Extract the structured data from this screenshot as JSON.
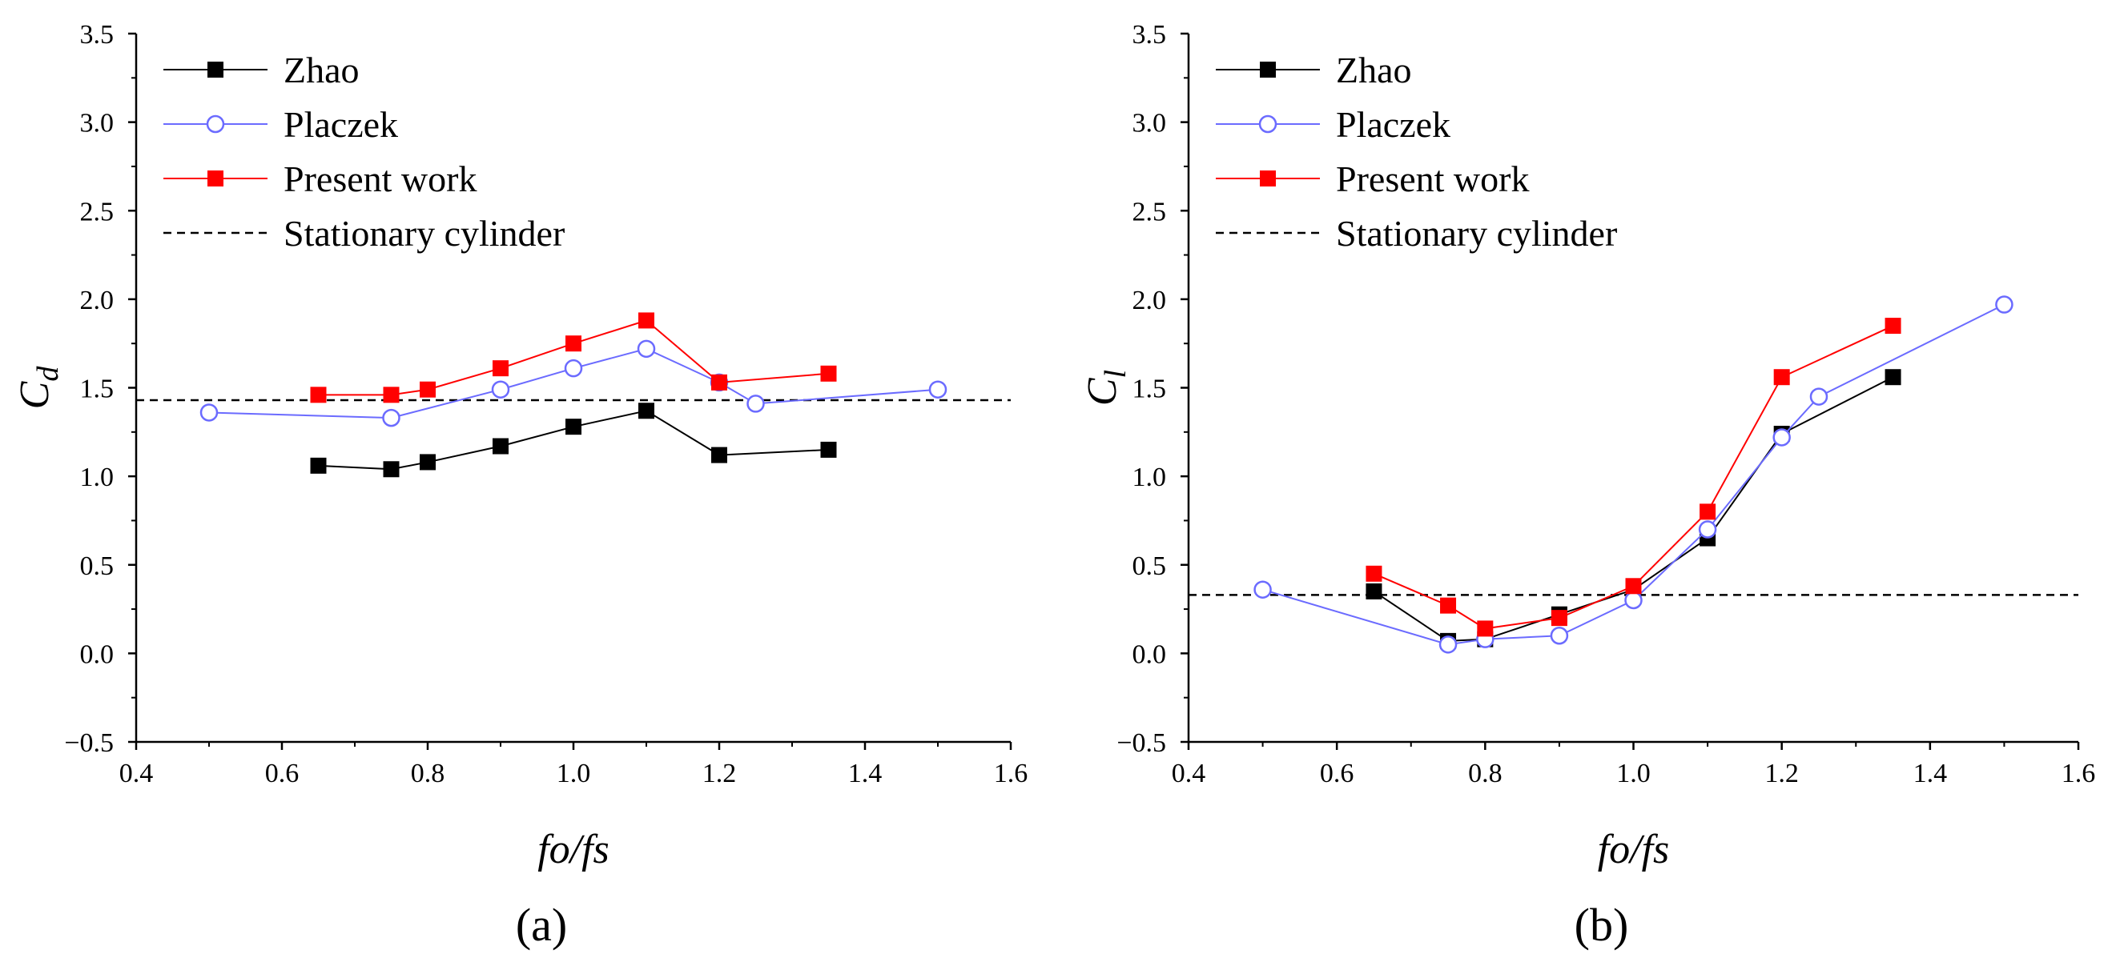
{
  "chart_data": [
    {
      "type": "line",
      "panel_label": "(a)",
      "xlabel": "fo/fs",
      "ylabel_main": "C",
      "ylabel_sub": "d",
      "xlim": [
        0.4,
        1.6
      ],
      "ylim": [
        -0.5,
        3.5
      ],
      "x_ticks": [
        "0.4",
        "0.6",
        "0.8",
        "1.0",
        "1.2",
        "1.4",
        "1.6"
      ],
      "y_ticks": [
        "−0.5",
        "0.0",
        "0.5",
        "1.0",
        "1.5",
        "2.0",
        "2.5",
        "3.0",
        "3.5"
      ],
      "legend_position": "top-left",
      "series": [
        {
          "name": "Zhao",
          "color": "#000000",
          "marker": "filled-square",
          "x": [
            0.65,
            0.75,
            0.8,
            0.9,
            1.0,
            1.1,
            1.2,
            1.35
          ],
          "y": [
            1.06,
            1.04,
            1.08,
            1.17,
            1.28,
            1.37,
            1.12,
            1.15
          ]
        },
        {
          "name": "Placzek",
          "color": "#6b6bff",
          "marker": "open-circle",
          "x": [
            0.5,
            0.75,
            0.9,
            1.0,
            1.1,
            1.2,
            1.25,
            1.5
          ],
          "y": [
            1.36,
            1.33,
            1.49,
            1.61,
            1.72,
            1.53,
            1.41,
            1.49
          ]
        },
        {
          "name": "Present work",
          "color": "#ff0000",
          "marker": "filled-square",
          "x": [
            0.65,
            0.75,
            0.8,
            0.9,
            1.0,
            1.1,
            1.2,
            1.35
          ],
          "y": [
            1.46,
            1.46,
            1.49,
            1.61,
            1.75,
            1.88,
            1.53,
            1.58
          ]
        }
      ],
      "reference_lines": [
        {
          "name": "Stationary cylinder",
          "color": "#000000",
          "style": "dashed",
          "y": 1.43
        }
      ]
    },
    {
      "type": "line",
      "panel_label": "(b)",
      "xlabel": "fo/fs",
      "ylabel_main": "C",
      "ylabel_sub": "l",
      "xlim": [
        0.4,
        1.6
      ],
      "ylim": [
        -0.5,
        3.5
      ],
      "x_ticks": [
        "0.4",
        "0.6",
        "0.8",
        "1.0",
        "1.2",
        "1.4",
        "1.6"
      ],
      "y_ticks": [
        "−0.5",
        "0.0",
        "0.5",
        "1.0",
        "1.5",
        "2.0",
        "2.5",
        "3.0",
        "3.5"
      ],
      "legend_position": "top-left",
      "series": [
        {
          "name": "Zhao",
          "color": "#000000",
          "marker": "filled-square",
          "x": [
            0.65,
            0.75,
            0.8,
            0.9,
            1.0,
            1.1,
            1.2,
            1.35
          ],
          "y": [
            0.35,
            0.07,
            0.08,
            0.22,
            0.36,
            0.65,
            1.24,
            1.56
          ]
        },
        {
          "name": "Placzek",
          "color": "#6b6bff",
          "marker": "open-circle",
          "x": [
            0.5,
            0.75,
            0.8,
            0.9,
            1.0,
            1.1,
            1.2,
            1.25,
            1.5
          ],
          "y": [
            0.36,
            0.05,
            0.08,
            0.1,
            0.3,
            0.7,
            1.22,
            1.45,
            1.97
          ]
        },
        {
          "name": "Present work",
          "color": "#ff0000",
          "marker": "filled-square",
          "x": [
            0.65,
            0.75,
            0.8,
            0.9,
            1.0,
            1.1,
            1.2,
            1.35
          ],
          "y": [
            0.45,
            0.27,
            0.14,
            0.2,
            0.38,
            0.8,
            1.56,
            1.85
          ]
        }
      ],
      "reference_lines": [
        {
          "name": "Stationary cylinder",
          "color": "#000000",
          "style": "dashed",
          "y": 0.33
        }
      ]
    }
  ]
}
